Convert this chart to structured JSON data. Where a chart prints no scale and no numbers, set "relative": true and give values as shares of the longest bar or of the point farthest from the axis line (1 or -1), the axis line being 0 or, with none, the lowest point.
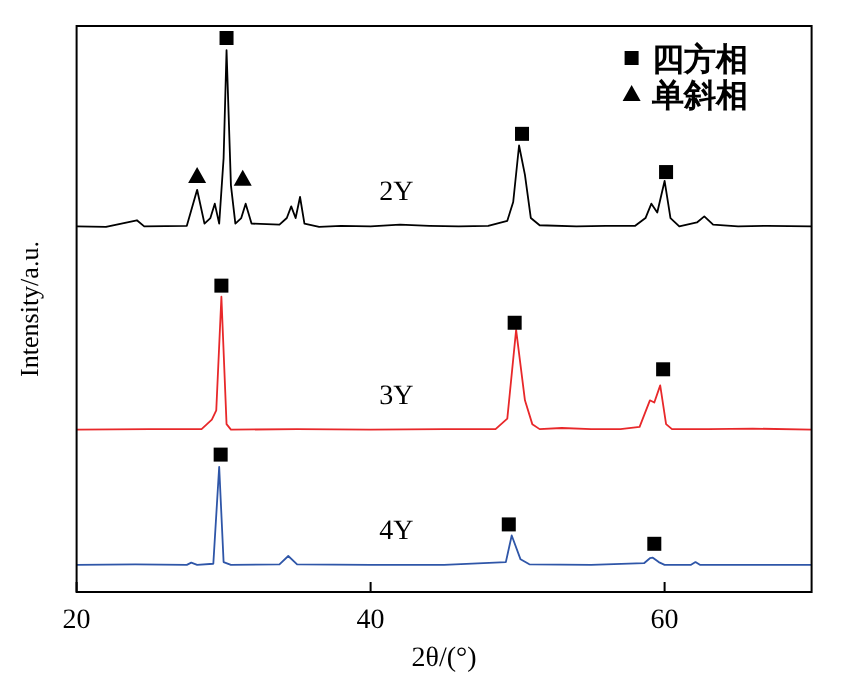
{
  "chart_data": {
    "type": "line",
    "relative": true,
    "xlabel": "2θ/(°)",
    "ylabel": "Intensity/a.u.",
    "xlim": [
      20,
      70
    ],
    "xticks": [
      20,
      40,
      60
    ],
    "legend": "top right",
    "grid": false,
    "series": [
      {
        "color": "#000000",
        "marker": "none",
        "x": [
          20,
          22,
          24.1,
          24.6,
          27.5,
          28.2,
          28.7,
          29.1,
          29.4,
          29.7,
          30.0,
          30.2,
          30.5,
          30.8,
          31.2,
          31.5,
          31.9,
          33.8,
          34.3,
          34.6,
          34.9,
          35.2,
          35.5,
          36.5,
          38,
          40,
          42,
          44,
          46,
          48,
          49.3,
          49.7,
          50.1,
          50.5,
          50.9,
          51.5,
          54,
          56,
          58,
          58.7,
          59.1,
          59.5,
          60.0,
          60.4,
          61,
          62.2,
          62.7,
          63.3,
          65,
          67,
          70
        ],
        "values": [
          0.66,
          0.659,
          0.671,
          0.66,
          0.661,
          0.726,
          0.665,
          0.675,
          0.701,
          0.665,
          0.783,
          0.978,
          0.734,
          0.665,
          0.675,
          0.701,
          0.665,
          0.663,
          0.675,
          0.696,
          0.675,
          0.713,
          0.665,
          0.659,
          0.661,
          0.66,
          0.663,
          0.661,
          0.66,
          0.661,
          0.67,
          0.704,
          0.806,
          0.753,
          0.675,
          0.662,
          0.66,
          0.661,
          0.661,
          0.675,
          0.701,
          0.685,
          0.742,
          0.675,
          0.66,
          0.667,
          0.678,
          0.663,
          0.66,
          0.661,
          0.66
        ]
      },
      {
        "color": "#e8282a",
        "marker": "none",
        "x": [
          20,
          25,
          28.5,
          29.2,
          29.5,
          29.85,
          30.2,
          30.5,
          35,
          40,
          45,
          48.5,
          49.3,
          49.9,
          50.5,
          51,
          51.5,
          53,
          55,
          57,
          58.3,
          59.0,
          59.3,
          59.7,
          60.1,
          60.5,
          63,
          66,
          70
        ],
        "values": [
          0.293,
          0.294,
          0.294,
          0.311,
          0.328,
          0.533,
          0.303,
          0.293,
          0.294,
          0.293,
          0.294,
          0.294,
          0.313,
          0.473,
          0.346,
          0.303,
          0.294,
          0.296,
          0.294,
          0.294,
          0.298,
          0.346,
          0.342,
          0.373,
          0.303,
          0.294,
          0.294,
          0.295,
          0.293
        ]
      },
      {
        "color": "#2f56a8",
        "marker": "none",
        "x": [
          20,
          24,
          27.5,
          27.8,
          28.2,
          29.3,
          29.7,
          30.0,
          30.5,
          33.8,
          34.4,
          35,
          40,
          45,
          49.2,
          49.6,
          50.2,
          50.8,
          55,
          58.6,
          59.0,
          59.2,
          59.6,
          60,
          61.8,
          62.1,
          62.4,
          66,
          70
        ],
        "values": [
          0.049,
          0.05,
          0.049,
          0.053,
          0.049,
          0.051,
          0.226,
          0.054,
          0.049,
          0.05,
          0.065,
          0.05,
          0.049,
          0.049,
          0.054,
          0.102,
          0.059,
          0.05,
          0.049,
          0.052,
          0.061,
          0.062,
          0.054,
          0.049,
          0.049,
          0.054,
          0.049,
          0.049,
          0.049
        ]
      },
      {
        "type": "scatter",
        "name": "四方相",
        "color": "#000000",
        "marker": "square",
        "x": [
          30.2,
          50.3,
          60.1,
          29.85,
          49.8,
          59.9,
          29.8,
          49.4,
          59.3
        ],
        "values": [
          1.0,
          0.827,
          0.758,
          0.553,
          0.486,
          0.402,
          0.248,
          0.122,
          0.087
        ]
      },
      {
        "type": "scatter",
        "name": "单斜相",
        "color": "#000000",
        "marker": "triangle",
        "x": [
          28.2,
          31.3
        ],
        "values": [
          0.751,
          0.746
        ]
      }
    ],
    "annotations": [
      "2Y",
      "3Y",
      "4Y"
    ]
  }
}
